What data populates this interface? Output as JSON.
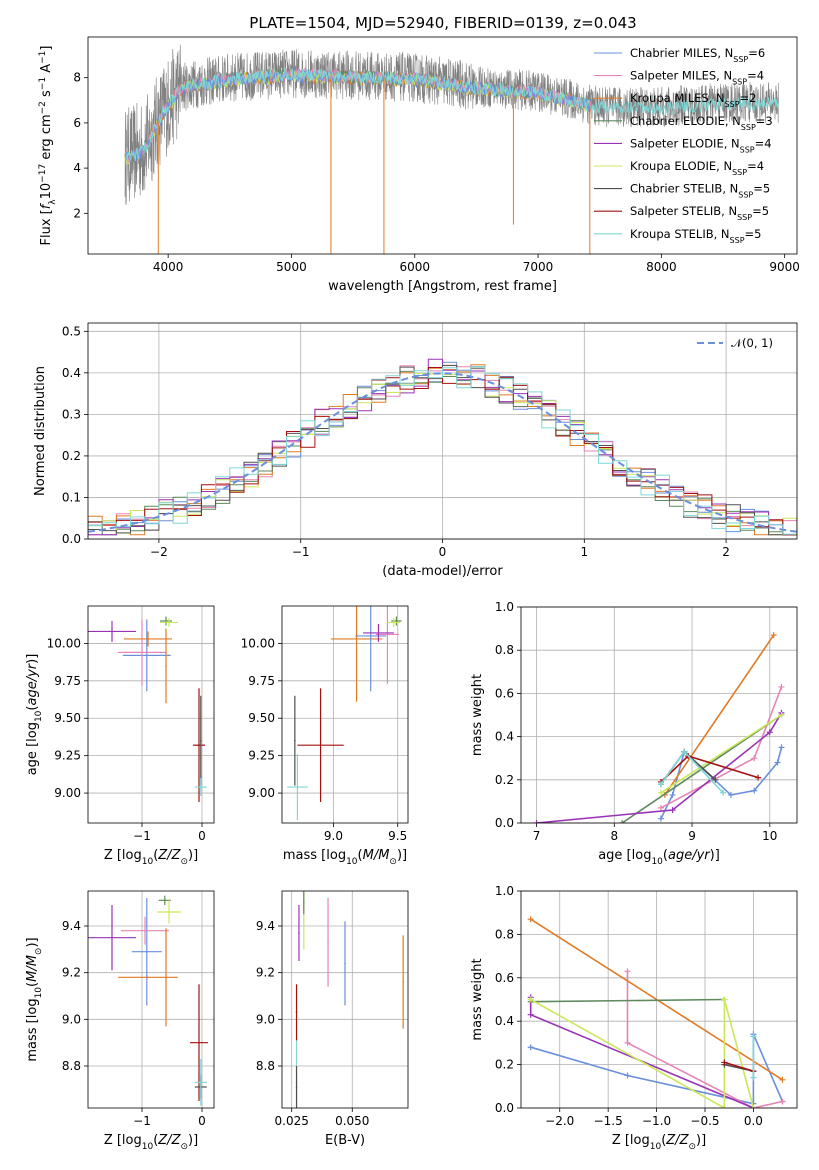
{
  "figure_title": "PLATE=1504, MJD=52940, FIBERID=0139, z=0.043",
  "colors": {
    "Chabrier MILES": "#6a8fdd",
    "Salpeter MILES": "#e585b6",
    "Kroupa MILES": "#e07a25",
    "Chabrier ELODIE": "#5e8a5e",
    "Salpeter ELODIE": "#9a32b8",
    "Kroupa ELODIE": "#cbe85a",
    "Chabrier STELIB": "#505050",
    "Salpeter STELIB": "#a31010",
    "Kroupa STELIB": "#7fd6d6",
    "data": "#808080",
    "normal": "#6a8fdd"
  },
  "chart_data": [
    {
      "id": "spectrum",
      "type": "line",
      "xlabel": "wavelength [Angstrom, rest frame]",
      "ylabel": "Flux [f_λ 10^-17 erg cm^-2 s^-1 A^-1]",
      "xlim": [
        3350,
        9100
      ],
      "ylim": [
        0.2,
        9.8
      ],
      "xticks": [
        4000,
        5000,
        6000,
        7000,
        8000,
        9000
      ],
      "yticks": [
        2,
        4,
        6,
        8
      ],
      "grid": false,
      "legend_position": "right",
      "legend": [
        {
          "name": "Chabrier MILES",
          "nssp": "6"
        },
        {
          "name": "Salpeter MILES",
          "nssp": "4"
        },
        {
          "name": "Kroupa MILES",
          "nssp": "2"
        },
        {
          "name": "Chabrier ELODIE",
          "nssp": "3"
        },
        {
          "name": "Salpeter ELODIE",
          "nssp": "4"
        },
        {
          "name": "Kroupa ELODIE",
          "nssp": "4"
        },
        {
          "name": "Chabrier STELIB",
          "nssp": "5"
        },
        {
          "name": "Salpeter STELIB",
          "nssp": "5"
        },
        {
          "name": "Kroupa STELIB",
          "nssp": "5"
        }
      ],
      "continuum": [
        [
          3650,
          4.5
        ],
        [
          3800,
          4.8
        ],
        [
          3950,
          6.4
        ],
        [
          4100,
          7.6
        ],
        [
          4300,
          7.8
        ],
        [
          4500,
          8.0
        ],
        [
          5000,
          8.2
        ],
        [
          5500,
          8.1
        ],
        [
          6000,
          8.0
        ],
        [
          6500,
          7.6
        ],
        [
          7000,
          7.4
        ],
        [
          7300,
          7.0
        ],
        [
          7500,
          6.7
        ],
        [
          8000,
          6.7
        ],
        [
          8500,
          6.9
        ],
        [
          8900,
          6.9
        ]
      ],
      "data_wavelength_range": [
        3650,
        8950
      ],
      "model_wavelength_range": [
        3650,
        7430
      ],
      "dips": [
        {
          "x": 3920,
          "y": 0.2
        },
        {
          "x": 5320,
          "y": 0.2
        },
        {
          "x": 5750,
          "y": 0.2
        },
        {
          "x": 6800,
          "y": 1.5
        },
        {
          "x": 7420,
          "y": 0.2
        }
      ]
    },
    {
      "id": "residuals",
      "type": "histogram",
      "xlabel": "(data-model)/error",
      "ylabel": "Normed distribution",
      "xlim": [
        -2.5,
        2.5
      ],
      "ylim": [
        0,
        0.52
      ],
      "xticks": [
        -2,
        -1,
        0,
        1,
        2
      ],
      "yticks": [
        0.0,
        0.1,
        0.2,
        0.3,
        0.4,
        0.5
      ],
      "grid": true,
      "legend": [
        {
          "name": "𝒩(0, 1)"
        }
      ],
      "legend_position": "top-right",
      "bin_width": 0.1
    },
    {
      "id": "age_vs_z",
      "type": "errorbar",
      "xlabel": "Z [log10(Z/Z⊙)]",
      "ylabel": "age [log10(age/yr)]",
      "xlim": [
        -1.9,
        0.2
      ],
      "ylim": [
        8.8,
        10.25
      ],
      "xticks": [
        -1,
        0
      ],
      "yticks": [
        9.0,
        9.25,
        9.5,
        9.75,
        10.0
      ],
      "grid": true,
      "points": [
        {
          "model": "Salpeter ELODIE",
          "x": -1.5,
          "y": 10.08,
          "xerr": 0.4,
          "yerr": 0.07
        },
        {
          "model": "Chabrier MILES",
          "x": -0.92,
          "y": 9.92,
          "xerr": 0.4,
          "yerr": 0.24
        },
        {
          "model": "Salpeter MILES",
          "x": -1.0,
          "y": 9.94,
          "xerr": 0.4,
          "yerr": 0.22
        },
        {
          "model": "Kroupa MILES",
          "x": -0.9,
          "y": 10.03,
          "xerr": 0.4,
          "yerr": 0.05
        },
        {
          "model": "Kroupa MILES",
          "x": -0.6,
          "y": 9.85,
          "xerr": 0.0,
          "yerr": 0.25
        },
        {
          "model": "Chabrier ELODIE",
          "x": -0.6,
          "y": 10.15,
          "xerr": 0.1,
          "yerr": 0.03
        },
        {
          "model": "Kroupa ELODIE",
          "x": -0.55,
          "y": 10.14,
          "xerr": 0.15,
          "yerr": 0.03
        },
        {
          "model": "Salpeter STELIB",
          "x": -0.05,
          "y": 9.32,
          "xerr": 0.1,
          "yerr": 0.38
        },
        {
          "model": "Chabrier STELIB",
          "x": -0.02,
          "y": 9.35,
          "xerr": 0.0,
          "yerr": 0.3
        },
        {
          "model": "Kroupa STELIB",
          "x": -0.02,
          "y": 9.04,
          "xerr": 0.1,
          "yerr": 0.06
        }
      ]
    },
    {
      "id": "age_vs_mass",
      "type": "errorbar",
      "xlabel": "mass [log10(M/M⊙)]",
      "ylabel": "",
      "xlim": [
        8.6,
        9.58
      ],
      "ylim": [
        8.8,
        10.25
      ],
      "xticks": [
        9.0,
        9.5
      ],
      "yticks": [
        9.0,
        9.25,
        9.5,
        9.75,
        10.0
      ],
      "grid": true,
      "points": [
        {
          "model": "Chabrier STELIB",
          "x": 8.7,
          "y": 9.35,
          "xerr": 0.0,
          "yerr": 0.3
        },
        {
          "model": "Kroupa STELIB",
          "x": 8.72,
          "y": 9.04,
          "xerr": 0.08,
          "yerr": 0.22
        },
        {
          "model": "Salpeter STELIB",
          "x": 8.9,
          "y": 9.32,
          "xerr": 0.18,
          "yerr": 0.38
        },
        {
          "model": "Kroupa MILES",
          "x": 9.18,
          "y": 10.03,
          "xerr": 0.2,
          "yerr": 0.42
        },
        {
          "model": "Chabrier MILES",
          "x": 9.29,
          "y": 10.05,
          "xerr": 0.12,
          "yerr": 0.37
        },
        {
          "model": "Salpeter MILES",
          "x": 9.42,
          "y": 10.06,
          "xerr": 0.09,
          "yerr": 0.33
        },
        {
          "model": "Salpeter ELODIE",
          "x": 9.35,
          "y": 10.07,
          "xerr": 0.12,
          "yerr": 0.06
        },
        {
          "model": "Chabrier ELODIE",
          "x": 9.49,
          "y": 10.15,
          "xerr": 0.04,
          "yerr": 0.03
        },
        {
          "model": "Kroupa ELODIE",
          "x": 9.47,
          "y": 10.14,
          "xerr": 0.05,
          "yerr": 0.03
        }
      ]
    },
    {
      "id": "weight_vs_age",
      "type": "line",
      "xlabel": "age [log10(age/yr)]",
      "ylabel": "mass weight",
      "xlim": [
        6.8,
        10.35
      ],
      "ylim": [
        0,
        1.0
      ],
      "xticks": [
        7,
        8,
        9,
        10
      ],
      "yticks": [
        0.0,
        0.2,
        0.4,
        0.6,
        0.8,
        1.0
      ],
      "grid": true,
      "series": [
        {
          "model": "Chabrier MILES",
          "points": [
            [
              8.6,
              0.02
            ],
            [
              8.75,
              0.13
            ],
            [
              8.9,
              0.33
            ],
            [
              9.5,
              0.13
            ],
            [
              9.8,
              0.15
            ],
            [
              10.1,
              0.28
            ],
            [
              10.15,
              0.35
            ]
          ]
        },
        {
          "model": "Salpeter MILES",
          "points": [
            [
              8.6,
              0.07
            ],
            [
              9.8,
              0.3
            ],
            [
              10.15,
              0.63
            ]
          ]
        },
        {
          "model": "Kroupa MILES",
          "points": [
            [
              8.65,
              0.13
            ],
            [
              10.05,
              0.87
            ]
          ]
        },
        {
          "model": "Chabrier ELODIE",
          "points": [
            [
              8.1,
              0.0
            ],
            [
              10.15,
              0.5
            ]
          ]
        },
        {
          "model": "Salpeter ELODIE",
          "points": [
            [
              7.0,
              0.0
            ],
            [
              8.75,
              0.06
            ],
            [
              10.0,
              0.42
            ],
            [
              10.15,
              0.51
            ]
          ]
        },
        {
          "model": "Kroupa ELODIE",
          "points": [
            [
              8.6,
              0.14
            ],
            [
              10.15,
              0.5
            ]
          ]
        },
        {
          "model": "Chabrier STELIB",
          "points": [
            [
              8.6,
              0.18
            ],
            [
              8.9,
              0.33
            ],
            [
              9.3,
              0.2
            ]
          ]
        },
        {
          "model": "Salpeter STELIB",
          "points": [
            [
              8.6,
              0.19
            ],
            [
              8.95,
              0.31
            ],
            [
              9.85,
              0.21
            ]
          ]
        },
        {
          "model": "Kroupa STELIB",
          "points": [
            [
              8.6,
              0.18
            ],
            [
              8.9,
              0.33
            ],
            [
              9.4,
              0.14
            ]
          ]
        }
      ]
    },
    {
      "id": "mass_vs_z",
      "type": "errorbar",
      "xlabel": "Z [log10(Z/Z⊙)]",
      "ylabel": "mass [log10(M/M⊙)]",
      "xlim": [
        -1.9,
        0.2
      ],
      "ylim": [
        8.62,
        9.55
      ],
      "xticks": [
        -1,
        0
      ],
      "yticks": [
        8.8,
        9.0,
        9.2,
        9.4
      ],
      "grid": true,
      "points": [
        {
          "model": "Salpeter ELODIE",
          "x": -1.5,
          "y": 9.35,
          "xerr": 0.4,
          "yerr": 0.14
        },
        {
          "model": "Chabrier MILES",
          "x": -0.92,
          "y": 9.29,
          "xerr": 0.25,
          "yerr": 0.23
        },
        {
          "model": "Salpeter MILES",
          "x": -0.95,
          "y": 9.38,
          "xerr": 0.4,
          "yerr": 0.06
        },
        {
          "model": "Kroupa MILES",
          "x": -0.9,
          "y": 9.18,
          "xerr": 0.5,
          "yerr": 0.0
        },
        {
          "model": "Kroupa MILES",
          "x": -0.6,
          "y": 9.18,
          "xerr": 0.0,
          "yerr": 0.21
        },
        {
          "model": "Chabrier ELODIE",
          "x": -0.62,
          "y": 9.51,
          "xerr": 0.1,
          "yerr": 0.02
        },
        {
          "model": "Kroupa ELODIE",
          "x": -0.55,
          "y": 9.46,
          "xerr": 0.2,
          "yerr": 0.05
        },
        {
          "model": "Salpeter STELIB",
          "x": -0.05,
          "y": 8.9,
          "xerr": 0.15,
          "yerr": 0.25
        },
        {
          "model": "Chabrier STELIB",
          "x": -0.02,
          "y": 8.71,
          "xerr": 0.1,
          "yerr": 0.05
        },
        {
          "model": "Kroupa STELIB",
          "x": -0.02,
          "y": 8.73,
          "xerr": 0.1,
          "yerr": 0.1
        }
      ]
    },
    {
      "id": "mass_vs_ebv",
      "type": "errorbar",
      "xlabel": "E(B-V)",
      "ylabel": "",
      "xlim": [
        0.021,
        0.073
      ],
      "ylim": [
        8.62,
        9.55
      ],
      "xticks": [
        0.025,
        0.05
      ],
      "yticks": [
        8.8,
        9.0,
        9.2,
        9.4
      ],
      "grid": true,
      "points": [
        {
          "model": "Kroupa STELIB",
          "x": 0.027,
          "y": 8.73,
          "xerr": 0.0,
          "yerr": 0.2
        },
        {
          "model": "Chabrier STELIB",
          "x": 0.027,
          "y": 8.71,
          "xerr": 0.0,
          "yerr": 0.09
        },
        {
          "model": "Salpeter STELIB",
          "x": 0.027,
          "y": 9.03,
          "xerr": 0.0,
          "yerr": 0.12
        },
        {
          "model": "Salpeter ELODIE",
          "x": 0.028,
          "y": 9.37,
          "xerr": 0.0,
          "yerr": 0.12
        },
        {
          "model": "Kroupa ELODIE",
          "x": 0.03,
          "y": 9.42,
          "xerr": 0.0,
          "yerr": 0.12
        },
        {
          "model": "Chabrier ELODIE",
          "x": 0.03,
          "y": 9.5,
          "xerr": 0.0,
          "yerr": 0.05
        },
        {
          "model": "Salpeter MILES",
          "x": 0.04,
          "y": 9.33,
          "xerr": 0.0,
          "yerr": 0.19
        },
        {
          "model": "Chabrier MILES",
          "x": 0.047,
          "y": 9.24,
          "xerr": 0.0,
          "yerr": 0.18
        },
        {
          "model": "Kroupa MILES",
          "x": 0.071,
          "y": 9.16,
          "xerr": 0.0,
          "yerr": 0.2
        }
      ]
    },
    {
      "id": "weight_vs_z",
      "type": "line",
      "xlabel": "Z [log10(Z/Z⊙)]",
      "ylabel": "mass weight",
      "xlim": [
        -2.4,
        0.45
      ],
      "ylim": [
        0,
        1.0
      ],
      "xticks": [
        -2.0,
        -1.5,
        -1.0,
        -0.5,
        0.0
      ],
      "yticks": [
        0.0,
        0.2,
        0.4,
        0.6,
        0.8,
        1.0
      ],
      "grid": true,
      "series": [
        {
          "model": "Chabrier MILES",
          "points": [
            [
              -2.3,
              0.28
            ],
            [
              -1.3,
              0.15
            ],
            [
              0.0,
              0.02
            ],
            [
              0.0,
              0.34
            ],
            [
              0.3,
              0.03
            ]
          ]
        },
        {
          "model": "Salpeter MILES",
          "points": [
            [
              -1.3,
              0.63
            ],
            [
              -1.3,
              0.3
            ],
            [
              0.0,
              0.0
            ],
            [
              0.3,
              0.03
            ]
          ]
        },
        {
          "model": "Kroupa MILES",
          "points": [
            [
              -2.3,
              0.87
            ],
            [
              0.3,
              0.13
            ]
          ]
        },
        {
          "model": "Chabrier ELODIE",
          "points": [
            [
              -2.3,
              0.49
            ],
            [
              -0.3,
              0.5
            ]
          ]
        },
        {
          "model": "Salpeter ELODIE",
          "points": [
            [
              -2.3,
              0.51
            ],
            [
              -2.3,
              0.43
            ],
            [
              0.0,
              0.0
            ]
          ]
        },
        {
          "model": "Kroupa ELODIE",
          "points": [
            [
              -2.3,
              0.5
            ],
            [
              -0.3,
              0.0
            ],
            [
              -0.3,
              0.5
            ],
            [
              0.0,
              0.0
            ]
          ]
        },
        {
          "model": "Chabrier STELIB",
          "points": [
            [
              -0.3,
              0.2
            ],
            [
              0.0,
              0.17
            ]
          ]
        },
        {
          "model": "Salpeter STELIB",
          "points": [
            [
              -0.3,
              0.21
            ],
            [
              0.0,
              0.17
            ]
          ]
        },
        {
          "model": "Kroupa STELIB",
          "points": [
            [
              0.0,
              0.33
            ],
            [
              0.0,
              0.14
            ]
          ]
        }
      ]
    }
  ]
}
